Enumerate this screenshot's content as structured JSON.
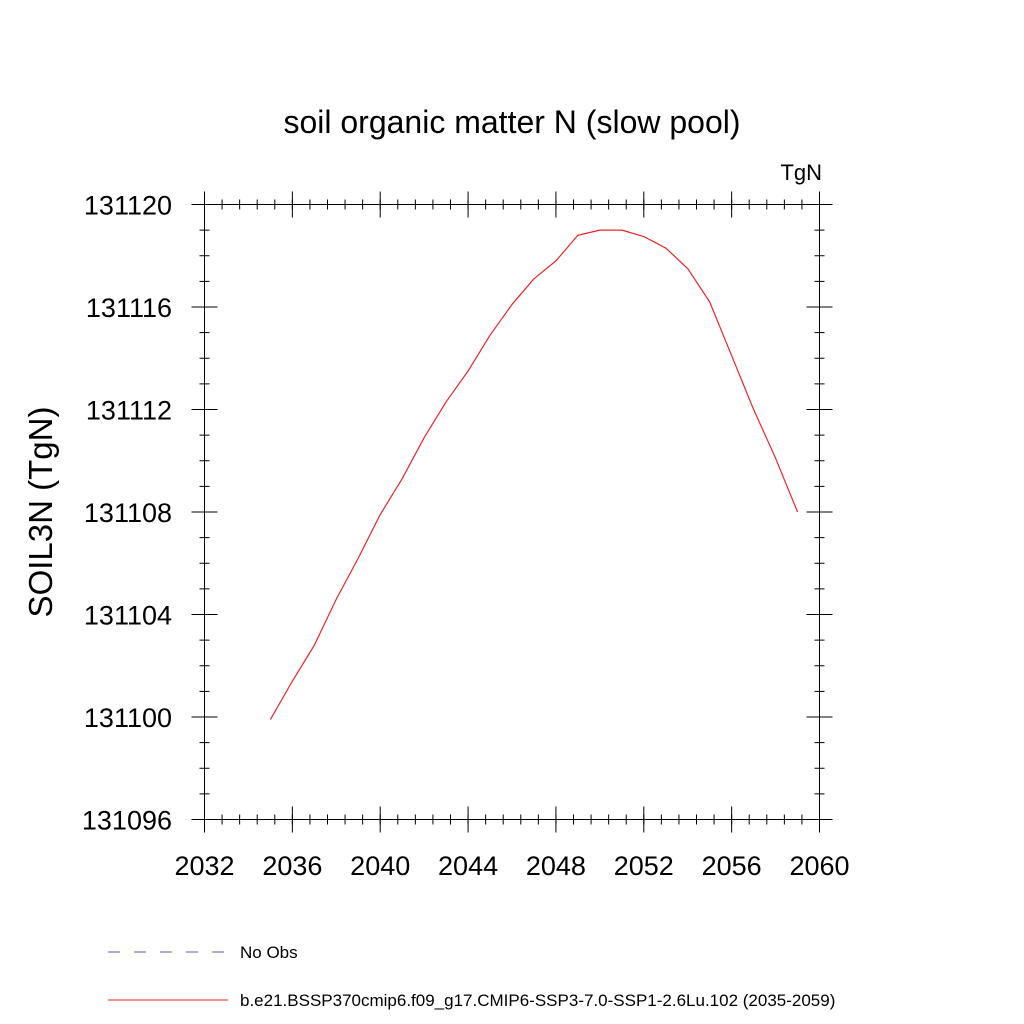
{
  "chart_data": {
    "type": "line",
    "title": "soil organic matter N (slow pool)",
    "units_label": "TgN",
    "ylabel": "SOIL3N  (TgN)",
    "xlabel": "",
    "xlim": [
      2032,
      2060
    ],
    "ylim": [
      131096,
      131120
    ],
    "x_ticks": [
      2032,
      2036,
      2040,
      2044,
      2048,
      2052,
      2056,
      2060
    ],
    "y_ticks": [
      131096,
      131100,
      131104,
      131108,
      131112,
      131116,
      131120
    ],
    "x_tick_labels": [
      "2032",
      "2036",
      "2040",
      "2044",
      "2048",
      "2052",
      "2056",
      "2060"
    ],
    "y_tick_labels": [
      "131096",
      "131100",
      "131104",
      "131108",
      "131112",
      "131116",
      "131120"
    ],
    "grid": false,
    "legend_placement": "bottom",
    "series": [
      {
        "name": "b.e21.BSSP370cmip6.f09_g17.CMIP6-SSP3-7.0-SSP1-2.6Lu.102 (2035-2059)",
        "color": "#e8262a",
        "dash": "solid",
        "x": [
          2035,
          2036,
          2037,
          2038,
          2039,
          2040,
          2041,
          2042,
          2043,
          2044,
          2045,
          2046,
          2047,
          2048,
          2049,
          2050,
          2051,
          2052,
          2053,
          2054,
          2055,
          2056,
          2057,
          2058,
          2059
        ],
        "y": [
          131099.9,
          131101.4,
          131102.8,
          131104.6,
          131106.2,
          131107.9,
          131109.3,
          131110.9,
          131112.3,
          131113.5,
          131114.9,
          131116.1,
          131117.1,
          131117.8,
          131118.8,
          131119.0,
          131119.0,
          131118.75,
          131118.3,
          131117.5,
          131116.2,
          131114.1,
          131112.0,
          131110.1,
          131108.0
        ]
      }
    ],
    "legend": [
      {
        "label": "No Obs",
        "color": "#5b5bb0",
        "dash": "dashed"
      },
      {
        "label": "b.e21.BSSP370cmip6.f09_g17.CMIP6-SSP3-7.0-SSP1-2.6Lu.102 (2035-2059)",
        "color": "#e8262a",
        "dash": "solid"
      }
    ]
  }
}
